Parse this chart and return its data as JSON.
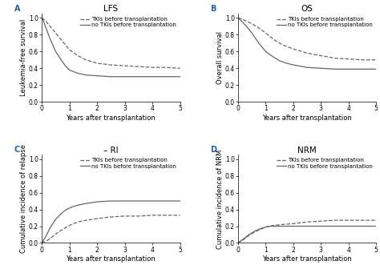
{
  "panels": [
    {
      "label": "A",
      "title": "LFS",
      "ylabel": "Leukemia-free survival",
      "xlabel": "Years after transplantation",
      "ylim": [
        0.0,
        1.05
      ],
      "xlim": [
        0,
        5
      ],
      "yticks": [
        0.0,
        0.2,
        0.4,
        0.6,
        0.8,
        1.0
      ],
      "xticks": [
        0,
        1,
        2,
        3,
        4,
        5
      ],
      "curve1": {
        "x": [
          0,
          0.05,
          0.15,
          0.3,
          0.5,
          0.7,
          0.85,
          1.0,
          1.3,
          1.6,
          2.0,
          2.5,
          3.0,
          3.5,
          4.0,
          4.5,
          5.0
        ],
        "y": [
          1.0,
          0.99,
          0.96,
          0.9,
          0.82,
          0.74,
          0.68,
          0.62,
          0.55,
          0.5,
          0.46,
          0.44,
          0.43,
          0.42,
          0.41,
          0.41,
          0.4
        ],
        "style": "dashed",
        "label": "TKIs before transplantation"
      },
      "curve2": {
        "x": [
          0,
          0.05,
          0.15,
          0.3,
          0.5,
          0.7,
          0.85,
          1.0,
          1.3,
          1.6,
          2.0,
          2.5,
          3.0,
          3.5,
          4.0,
          4.5,
          5.0
        ],
        "y": [
          1.0,
          0.97,
          0.88,
          0.75,
          0.6,
          0.5,
          0.43,
          0.38,
          0.34,
          0.32,
          0.31,
          0.3,
          0.3,
          0.3,
          0.3,
          0.3,
          0.3
        ],
        "style": "solid",
        "label": "no TKIs before transplantation"
      }
    },
    {
      "label": "B",
      "title": "OS",
      "ylabel": "Overall survival",
      "xlabel": "Years after transplantation",
      "ylim": [
        0.0,
        1.05
      ],
      "xlim": [
        0,
        5
      ],
      "yticks": [
        0.0,
        0.2,
        0.4,
        0.6,
        0.8,
        1.0
      ],
      "xticks": [
        0,
        1,
        2,
        3,
        4,
        5
      ],
      "curve1": {
        "x": [
          0,
          0.1,
          0.25,
          0.5,
          0.75,
          1.0,
          1.3,
          1.6,
          2.0,
          2.5,
          3.0,
          3.5,
          4.0,
          4.5,
          5.0
        ],
        "y": [
          1.0,
          0.99,
          0.97,
          0.93,
          0.88,
          0.82,
          0.74,
          0.68,
          0.63,
          0.58,
          0.55,
          0.52,
          0.51,
          0.5,
          0.5
        ],
        "style": "dashed",
        "label": "TKIs before transplantation"
      },
      "curve2": {
        "x": [
          0,
          0.1,
          0.25,
          0.5,
          0.75,
          1.0,
          1.25,
          1.5,
          1.75,
          2.0,
          2.5,
          3.0,
          3.5,
          4.0,
          4.5,
          5.0
        ],
        "y": [
          1.0,
          0.97,
          0.92,
          0.82,
          0.7,
          0.6,
          0.54,
          0.49,
          0.46,
          0.44,
          0.41,
          0.4,
          0.39,
          0.39,
          0.39,
          0.39
        ],
        "style": "solid",
        "label": "no TKIs before transplantation"
      }
    },
    {
      "label": "C",
      "title": "RI",
      "title_prefix": "– ",
      "ylabel": "Cumulative incidence of relapse",
      "xlabel": "Years after transplantation",
      "ylim": [
        0.0,
        1.05
      ],
      "xlim": [
        0,
        5
      ],
      "yticks": [
        0.0,
        0.2,
        0.4,
        0.6,
        0.8,
        1.0
      ],
      "xticks": [
        0,
        1,
        2,
        3,
        4,
        5
      ],
      "curve1": {
        "x": [
          0,
          0.2,
          0.4,
          0.6,
          0.8,
          1.0,
          1.3,
          1.6,
          2.0,
          2.5,
          3.0,
          3.5,
          4.0,
          4.5,
          5.0
        ],
        "y": [
          0.0,
          0.03,
          0.08,
          0.13,
          0.17,
          0.21,
          0.25,
          0.27,
          0.29,
          0.31,
          0.32,
          0.32,
          0.33,
          0.33,
          0.33
        ],
        "style": "dashed",
        "label": "TKIs before transplantation"
      },
      "curve2": {
        "x": [
          0,
          0.15,
          0.3,
          0.5,
          0.7,
          0.9,
          1.1,
          1.3,
          1.6,
          2.0,
          2.5,
          3.0,
          3.5,
          4.0,
          4.5,
          5.0
        ],
        "y": [
          0.0,
          0.08,
          0.18,
          0.28,
          0.35,
          0.4,
          0.43,
          0.45,
          0.47,
          0.49,
          0.5,
          0.5,
          0.5,
          0.5,
          0.5,
          0.5
        ],
        "style": "solid",
        "label": "no TKIs before transplantation"
      }
    },
    {
      "label": "D",
      "title": "NRM",
      "ylabel": "Cumulative incidence of NRM",
      "xlabel": "Years after transplantation",
      "ylim": [
        0.0,
        1.05
      ],
      "xlim": [
        0,
        5
      ],
      "yticks": [
        0.0,
        0.2,
        0.4,
        0.6,
        0.8,
        1.0
      ],
      "xticks": [
        0,
        1,
        2,
        3,
        4,
        5
      ],
      "curve1": {
        "x": [
          0,
          0.2,
          0.4,
          0.6,
          0.8,
          1.0,
          1.3,
          1.6,
          2.0,
          2.5,
          3.0,
          3.5,
          4.0,
          4.5,
          5.0
        ],
        "y": [
          0.0,
          0.04,
          0.09,
          0.13,
          0.16,
          0.19,
          0.21,
          0.22,
          0.23,
          0.25,
          0.26,
          0.27,
          0.27,
          0.27,
          0.27
        ],
        "style": "dashed",
        "label": "TKIs before transplantation"
      },
      "curve2": {
        "x": [
          0,
          0.2,
          0.4,
          0.6,
          0.8,
          1.0,
          1.2,
          1.5,
          1.8,
          2.0,
          2.5,
          3.0,
          3.5,
          4.0,
          4.5,
          5.0
        ],
        "y": [
          0.0,
          0.05,
          0.1,
          0.14,
          0.17,
          0.19,
          0.2,
          0.2,
          0.2,
          0.2,
          0.2,
          0.2,
          0.2,
          0.2,
          0.2,
          0.2
        ],
        "style": "solid",
        "label": "no TKIs before transplantation"
      }
    }
  ],
  "line_color": "#666666",
  "line_width": 0.9,
  "legend_fontsize": 5.0,
  "label_fontsize": 6.0,
  "title_fontsize": 7.5,
  "tick_fontsize": 5.5,
  "panel_label_fontsize": 7,
  "background_color": "#ffffff"
}
